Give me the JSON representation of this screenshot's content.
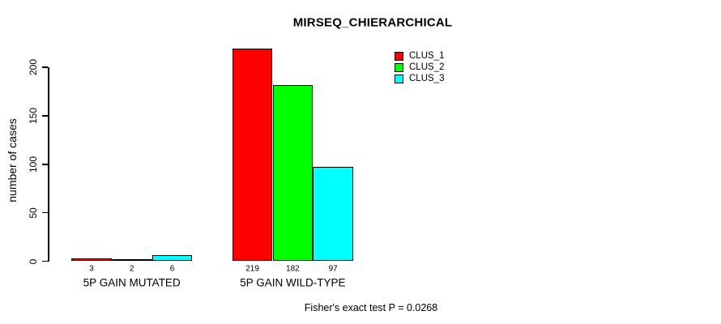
{
  "chart_data": {
    "type": "bar",
    "title": "MIRSEQ_CHIERARCHICAL",
    "ylabel": "number of cases",
    "xlabel": "",
    "footnote": "Fisher's exact test P = 0.0268",
    "categories": [
      "5P GAIN MUTATED",
      "5P GAIN WILD-TYPE"
    ],
    "series": [
      {
        "name": "CLUS_1",
        "color": "#ff0000",
        "values": [
          3,
          219
        ]
      },
      {
        "name": "CLUS_2",
        "color": "#00ff00",
        "values": [
          2,
          182
        ]
      },
      {
        "name": "CLUS_3",
        "color": "#00ffff",
        "values": [
          6,
          97
        ]
      }
    ],
    "yticks": [
      0,
      50,
      100,
      150,
      200
    ],
    "ylim": [
      0,
      229
    ],
    "grid": false,
    "legend_position": "inside-top-right",
    "bar_border_color": "#000000",
    "text_color": "#000000",
    "background_color": "#ffffff"
  }
}
